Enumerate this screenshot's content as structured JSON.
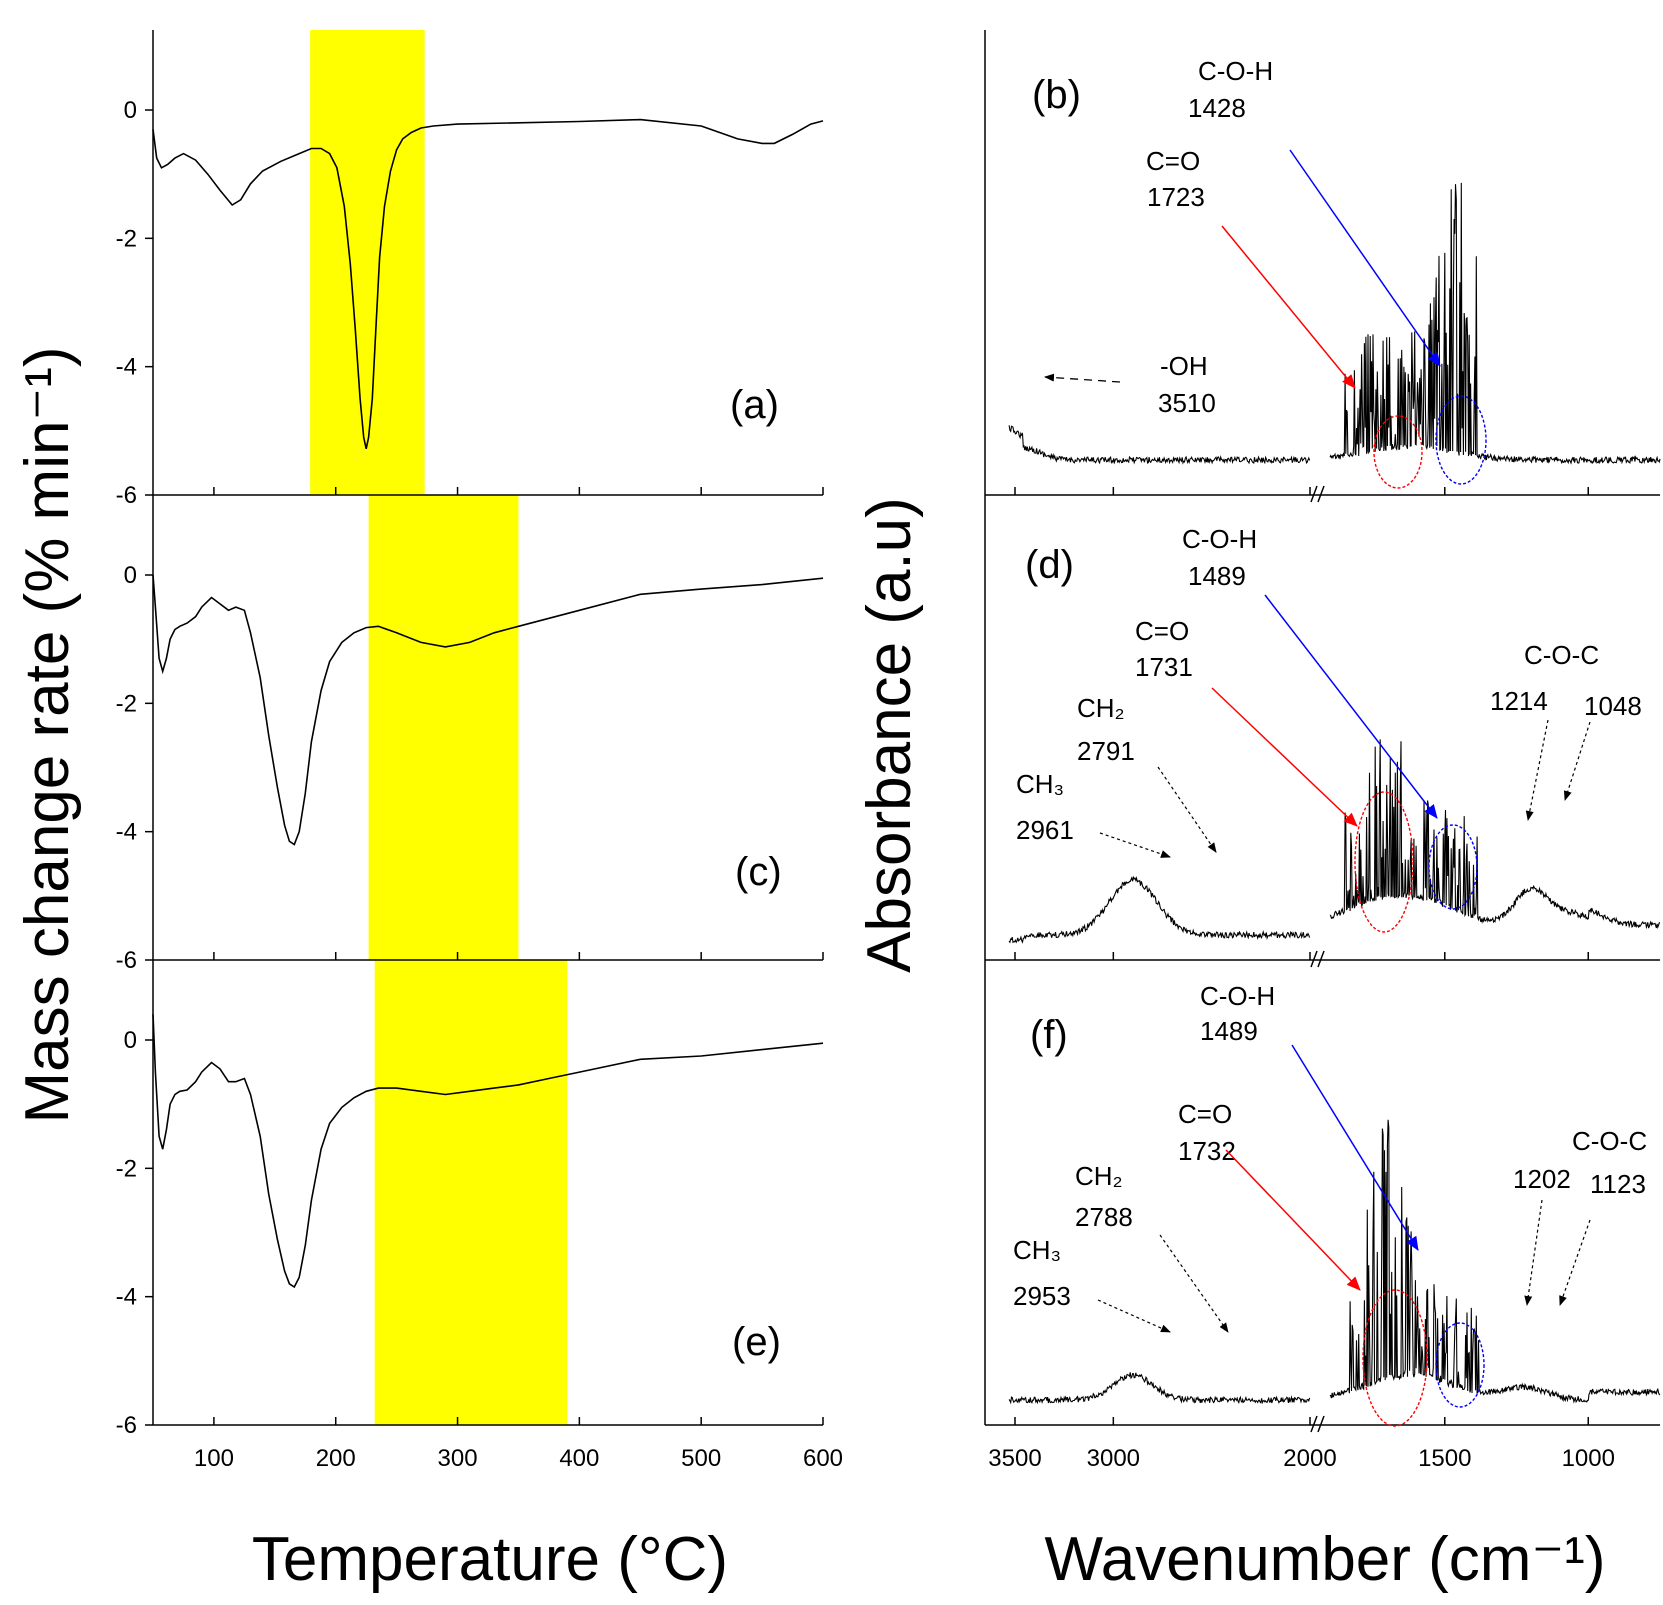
{
  "figure": {
    "left_ylabel": "Mass change rate (% min⁻¹)",
    "left_xlabel": "Temperature (°C)",
    "right_ylabel": "Absorbance (a.u)",
    "right_xlabel": "Wavenumber (cm⁻¹)"
  },
  "colors": {
    "highlight": "#ffff00",
    "line": "#000000",
    "carbonyl": "#ff0000",
    "hydroxyl": "#0000ff"
  },
  "chart_data": [
    {
      "type": "line",
      "panel": "(a)",
      "title": "(a)",
      "xlabel": "Temperature (°C)",
      "ylabel": "Mass change rate (% min⁻¹)",
      "xlim": [
        50,
        600
      ],
      "ylim": [
        -6,
        1
      ],
      "xticks": [
        100,
        200,
        300,
        400,
        500,
        600
      ],
      "yticks": [
        0,
        -2,
        -4,
        -6
      ],
      "highlight": [
        179,
        273
      ],
      "x": [
        50,
        53,
        57,
        62,
        68,
        75,
        85,
        95,
        105,
        115,
        122,
        130,
        140,
        155,
        170,
        180,
        188,
        195,
        201,
        207,
        212,
        216,
        220,
        223,
        225,
        227,
        230,
        233,
        236,
        240,
        245,
        250,
        255,
        262,
        270,
        280,
        300,
        350,
        400,
        450,
        500,
        530,
        550,
        560,
        575,
        590,
        600
      ],
      "y": [
        -0.3,
        -0.75,
        -0.9,
        -0.85,
        -0.75,
        -0.68,
        -0.78,
        -1.0,
        -1.25,
        -1.48,
        -1.4,
        -1.15,
        -0.95,
        -0.8,
        -0.68,
        -0.6,
        -0.6,
        -0.68,
        -0.9,
        -1.5,
        -2.4,
        -3.4,
        -4.5,
        -5.1,
        -5.28,
        -5.1,
        -4.5,
        -3.4,
        -2.3,
        -1.5,
        -0.95,
        -0.62,
        -0.45,
        -0.35,
        -0.28,
        -0.25,
        -0.22,
        -0.2,
        -0.18,
        -0.15,
        -0.25,
        -0.45,
        -0.52,
        -0.52,
        -0.38,
        -0.22,
        -0.17
      ]
    },
    {
      "type": "line",
      "panel": "(c)",
      "title": "(c)",
      "xlabel": "Temperature (°C)",
      "ylabel": "Mass change rate (% min⁻¹)",
      "xlim": [
        50,
        600
      ],
      "ylim": [
        -6,
        1
      ],
      "xticks": [
        100,
        200,
        300,
        400,
        500,
        600
      ],
      "yticks": [
        0,
        -2,
        -4,
        -6
      ],
      "highlight": [
        227,
        350
      ],
      "x": [
        50,
        52,
        55,
        58,
        61,
        64,
        68,
        72,
        78,
        85,
        90,
        98,
        105,
        112,
        118,
        125,
        130,
        138,
        145,
        152,
        158,
        162,
        166,
        170,
        175,
        180,
        188,
        195,
        205,
        215,
        225,
        235,
        250,
        270,
        290,
        310,
        330,
        350,
        400,
        450,
        500,
        550,
        600
      ],
      "y": [
        0.0,
        -0.5,
        -1.3,
        -1.5,
        -1.3,
        -1.0,
        -0.85,
        -0.8,
        -0.75,
        -0.65,
        -0.5,
        -0.35,
        -0.45,
        -0.55,
        -0.5,
        -0.55,
        -0.9,
        -1.6,
        -2.5,
        -3.3,
        -3.9,
        -4.15,
        -4.2,
        -4.0,
        -3.4,
        -2.6,
        -1.8,
        -1.35,
        -1.05,
        -0.9,
        -0.82,
        -0.8,
        -0.9,
        -1.05,
        -1.12,
        -1.05,
        -0.9,
        -0.8,
        -0.55,
        -0.3,
        -0.22,
        -0.15,
        -0.05
      ]
    },
    {
      "type": "line",
      "panel": "(e)",
      "title": "(e)",
      "xlabel": "Temperature (°C)",
      "ylabel": "Mass change rate (% min⁻¹)",
      "xlim": [
        50,
        600
      ],
      "ylim": [
        -6,
        1
      ],
      "xticks": [
        100,
        200,
        300,
        400,
        500,
        600
      ],
      "yticks": [
        0,
        -2,
        -4,
        -6
      ],
      "highlight": [
        232,
        390
      ],
      "x": [
        50,
        52,
        55,
        58,
        61,
        64,
        68,
        72,
        78,
        85,
        90,
        98,
        105,
        112,
        118,
        125,
        130,
        138,
        145,
        152,
        158,
        162,
        166,
        170,
        175,
        180,
        188,
        195,
        205,
        215,
        225,
        235,
        250,
        270,
        290,
        310,
        330,
        350,
        375,
        400,
        450,
        500,
        550,
        600
      ],
      "y": [
        0.4,
        -0.5,
        -1.5,
        -1.7,
        -1.4,
        -1.0,
        -0.85,
        -0.8,
        -0.78,
        -0.65,
        -0.5,
        -0.35,
        -0.45,
        -0.65,
        -0.65,
        -0.6,
        -0.85,
        -1.5,
        -2.4,
        -3.1,
        -3.6,
        -3.8,
        -3.85,
        -3.7,
        -3.2,
        -2.5,
        -1.7,
        -1.3,
        -1.05,
        -0.9,
        -0.8,
        -0.75,
        -0.75,
        -0.8,
        -0.85,
        -0.8,
        -0.75,
        -0.7,
        -0.6,
        -0.5,
        -0.3,
        -0.25,
        -0.15,
        -0.05
      ]
    },
    {
      "type": "line",
      "panel": "(b)",
      "title": "(b)",
      "xlabel": "Wavenumber (cm⁻¹)",
      "ylabel": "Absorbance (a.u)",
      "xlim": [
        3550,
        750
      ],
      "break": [
        2000,
        1900
      ],
      "xticks": [
        3500,
        3000,
        2000,
        1500,
        1000
      ],
      "annotations": [
        {
          "label": "C-O-H",
          "value": "1428"
        },
        {
          "label": "C=O",
          "value": "1723"
        },
        {
          "label": "-OH",
          "value": "3510"
        }
      ]
    },
    {
      "type": "line",
      "panel": "(d)",
      "title": "(d)",
      "xlabel": "Wavenumber (cm⁻¹)",
      "ylabel": "Absorbance (a.u)",
      "xlim": [
        3550,
        750
      ],
      "break": [
        2000,
        1900
      ],
      "xticks": [
        3500,
        3000,
        2000,
        1500,
        1000
      ],
      "annotations": [
        {
          "label": "C-O-H",
          "value": "1489"
        },
        {
          "label": "C=O",
          "value": "1731"
        },
        {
          "label": "CH₂",
          "value": "2791"
        },
        {
          "label": "CH₃",
          "value": "2961"
        },
        {
          "label": "C-O-C",
          "value": "1214"
        },
        {
          "label": "",
          "value": "1048"
        }
      ]
    },
    {
      "type": "line",
      "panel": "(f)",
      "title": "(f)",
      "xlabel": "Wavenumber (cm⁻¹)",
      "ylabel": "Absorbance (a.u)",
      "xlim": [
        3550,
        750
      ],
      "break": [
        2000,
        1900
      ],
      "xticks": [
        3500,
        3000,
        2000,
        1500,
        1000
      ],
      "annotations": [
        {
          "label": "C-O-H",
          "value": "1489"
        },
        {
          "label": "C=O",
          "value": "1732"
        },
        {
          "label": "CH₂",
          "value": "2788"
        },
        {
          "label": "CH₃",
          "value": "2953"
        },
        {
          "label": "C-O-C",
          "value": "1202"
        },
        {
          "label": "",
          "value": "1123"
        }
      ]
    }
  ]
}
